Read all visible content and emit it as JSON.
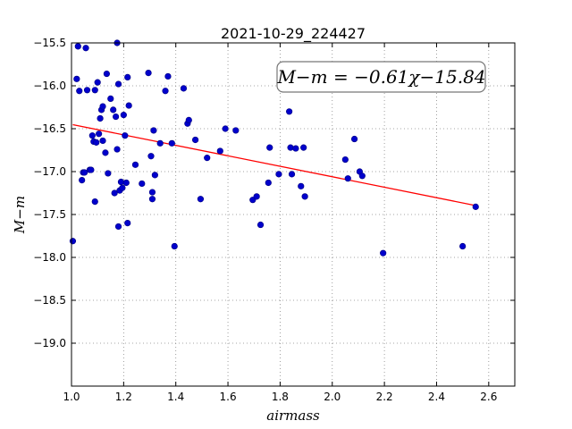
{
  "chart_data": {
    "type": "scatter",
    "title": "2021-10-29_224427",
    "xlabel": "airmass",
    "ylabel": "M−m",
    "xlim": [
      1.0,
      2.7
    ],
    "ylim": [
      -15.5,
      -19.5
    ],
    "y_inverted": true,
    "grid": true,
    "xticks": [
      "1.0",
      "1.2",
      "1.4",
      "1.6",
      "1.8",
      "2.0",
      "2.2",
      "2.4",
      "2.6"
    ],
    "yticks": [
      "−15.5",
      "−16.0",
      "−16.5",
      "−17.0",
      "−17.5",
      "−18.0",
      "−18.5",
      "−19.0"
    ],
    "annotation": "M−m = −0.61χ−15.84",
    "colors": {
      "points": "#0000cc",
      "fit": "#ff0000"
    },
    "fit": {
      "slope": -0.61,
      "intercept": -15.84
    },
    "points": [
      [
        1.005,
        -17.81
      ],
      [
        1.02,
        -15.92
      ],
      [
        1.025,
        -15.54
      ],
      [
        1.03,
        -16.06
      ],
      [
        1.04,
        -17.1
      ],
      [
        1.045,
        -17.01
      ],
      [
        1.05,
        -17.01
      ],
      [
        1.055,
        -15.56
      ],
      [
        1.06,
        -16.05
      ],
      [
        1.07,
        -16.98
      ],
      [
        1.075,
        -16.98
      ],
      [
        1.08,
        -16.58
      ],
      [
        1.085,
        -16.65
      ],
      [
        1.09,
        -17.35
      ],
      [
        1.09,
        -16.05
      ],
      [
        1.095,
        -16.66
      ],
      [
        1.1,
        -15.96
      ],
      [
        1.105,
        -16.56
      ],
      [
        1.11,
        -16.38
      ],
      [
        1.115,
        -16.28
      ],
      [
        1.12,
        -16.24
      ],
      [
        1.12,
        -16.64
      ],
      [
        1.13,
        -16.78
      ],
      [
        1.135,
        -15.86
      ],
      [
        1.14,
        -17.02
      ],
      [
        1.15,
        -16.15
      ],
      [
        1.16,
        -16.28
      ],
      [
        1.165,
        -17.25
      ],
      [
        1.17,
        -16.36
      ],
      [
        1.175,
        -16.74
      ],
      [
        1.175,
        -15.5
      ],
      [
        1.18,
        -15.98
      ],
      [
        1.18,
        -17.64
      ],
      [
        1.185,
        -17.22
      ],
      [
        1.19,
        -17.12
      ],
      [
        1.195,
        -17.19
      ],
      [
        1.2,
        -16.34
      ],
      [
        1.205,
        -16.58
      ],
      [
        1.21,
        -17.13
      ],
      [
        1.215,
        -17.6
      ],
      [
        1.215,
        -15.9
      ],
      [
        1.22,
        -16.23
      ],
      [
        1.245,
        -16.92
      ],
      [
        1.27,
        -17.14
      ],
      [
        1.295,
        -15.85
      ],
      [
        1.305,
        -16.82
      ],
      [
        1.31,
        -17.24
      ],
      [
        1.31,
        -17.32
      ],
      [
        1.315,
        -16.52
      ],
      [
        1.32,
        -17.04
      ],
      [
        1.34,
        -16.67
      ],
      [
        1.36,
        -16.06
      ],
      [
        1.37,
        -15.89
      ],
      [
        1.385,
        -16.67
      ],
      [
        1.395,
        -17.87
      ],
      [
        1.43,
        -16.03
      ],
      [
        1.445,
        -16.44
      ],
      [
        1.45,
        -16.4
      ],
      [
        1.475,
        -16.63
      ],
      [
        1.495,
        -17.32
      ],
      [
        1.52,
        -16.84
      ],
      [
        1.57,
        -16.76
      ],
      [
        1.59,
        -16.5
      ],
      [
        1.63,
        -16.52
      ],
      [
        1.695,
        -17.33
      ],
      [
        1.71,
        -17.29
      ],
      [
        1.725,
        -17.62
      ],
      [
        1.755,
        -17.13
      ],
      [
        1.76,
        -16.72
      ],
      [
        1.795,
        -17.03
      ],
      [
        1.835,
        -16.3
      ],
      [
        1.84,
        -16.72
      ],
      [
        1.845,
        -17.03
      ],
      [
        1.86,
        -16.73
      ],
      [
        1.88,
        -17.17
      ],
      [
        1.89,
        -16.72
      ],
      [
        1.895,
        -17.29
      ],
      [
        2.05,
        -16.86
      ],
      [
        2.06,
        -17.08
      ],
      [
        2.085,
        -16.62
      ],
      [
        2.105,
        -17.0
      ],
      [
        2.115,
        -17.05
      ],
      [
        2.195,
        -17.95
      ],
      [
        2.5,
        -17.87
      ],
      [
        2.55,
        -17.41
      ]
    ]
  }
}
